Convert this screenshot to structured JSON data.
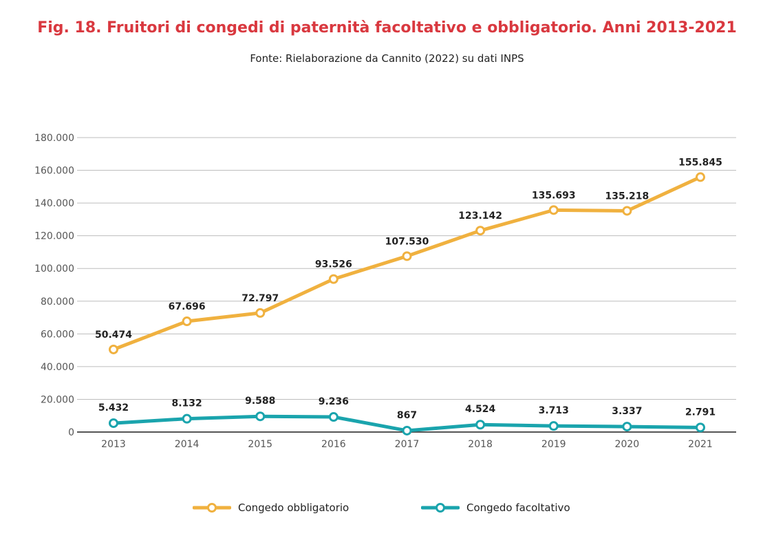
{
  "chart_data": {
    "type": "line",
    "title": "Fig. 18. Fruitori di congedi di paternità facoltativo e obbligatorio. Anni 2013-2021",
    "subtitle": "Fonte: Rielaborazione da Cannito (2022) su dati INPS",
    "xlabel": "",
    "ylabel": "",
    "categories": [
      "2013",
      "2014",
      "2015",
      "2016",
      "2017",
      "2018",
      "2019",
      "2020",
      "2021"
    ],
    "ylim": [
      0,
      180000
    ],
    "yticks": [
      0,
      20000,
      40000,
      60000,
      80000,
      100000,
      120000,
      140000,
      160000,
      180000
    ],
    "ytick_labels": [
      "0",
      "20.000",
      "40.000",
      "60.000",
      "80.000",
      "100.000",
      "120.000",
      "140.000",
      "160.000",
      "180.000"
    ],
    "grid": true,
    "legend_position": "bottom-center",
    "series": [
      {
        "name": "Congedo obbligatorio",
        "color": "#f0b13f",
        "values": [
          50474,
          67696,
          72797,
          93526,
          107530,
          123142,
          135693,
          135218,
          155845
        ],
        "labels": [
          "50.474",
          "67.696",
          "72.797",
          "93.526",
          "107.530",
          "123.142",
          "135.693",
          "135.218",
          "155.845"
        ]
      },
      {
        "name": "Congedo facoltativo",
        "color": "#1aa4ad",
        "values": [
          5432,
          8132,
          9588,
          9236,
          867,
          4524,
          3713,
          3337,
          2791
        ],
        "labels": [
          "5.432",
          "8.132",
          "9.588",
          "9.236",
          "867",
          "4.524",
          "3.713",
          "3.337",
          "2.791"
        ]
      }
    ]
  }
}
